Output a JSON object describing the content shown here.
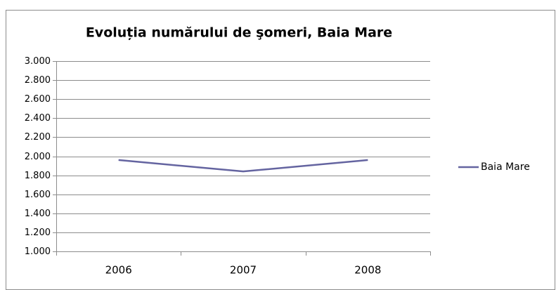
{
  "chart_data": {
    "type": "line",
    "title": "Evoluția numărului de şomeri, Baia Mare",
    "categories": [
      "2006",
      "2007",
      "2008"
    ],
    "series": [
      {
        "name": "Baia Mare",
        "color": "#6464a0",
        "values": [
          1960,
          1840,
          1960
        ]
      }
    ],
    "ylim": [
      1000,
      3000
    ],
    "yticks": [
      {
        "value": 1000,
        "label": "1.000"
      },
      {
        "value": 1200,
        "label": "1.200"
      },
      {
        "value": 1400,
        "label": "1.400"
      },
      {
        "value": 1600,
        "label": "1.600"
      },
      {
        "value": 1800,
        "label": "1.800"
      },
      {
        "value": 2000,
        "label": "2.000"
      },
      {
        "value": 2200,
        "label": "2.200"
      },
      {
        "value": 2400,
        "label": "2.400"
      },
      {
        "value": 2600,
        "label": "2.600"
      },
      {
        "value": 2800,
        "label": "2.800"
      },
      {
        "value": 3000,
        "label": "3.000"
      }
    ],
    "grid": true,
    "legend": "right"
  }
}
